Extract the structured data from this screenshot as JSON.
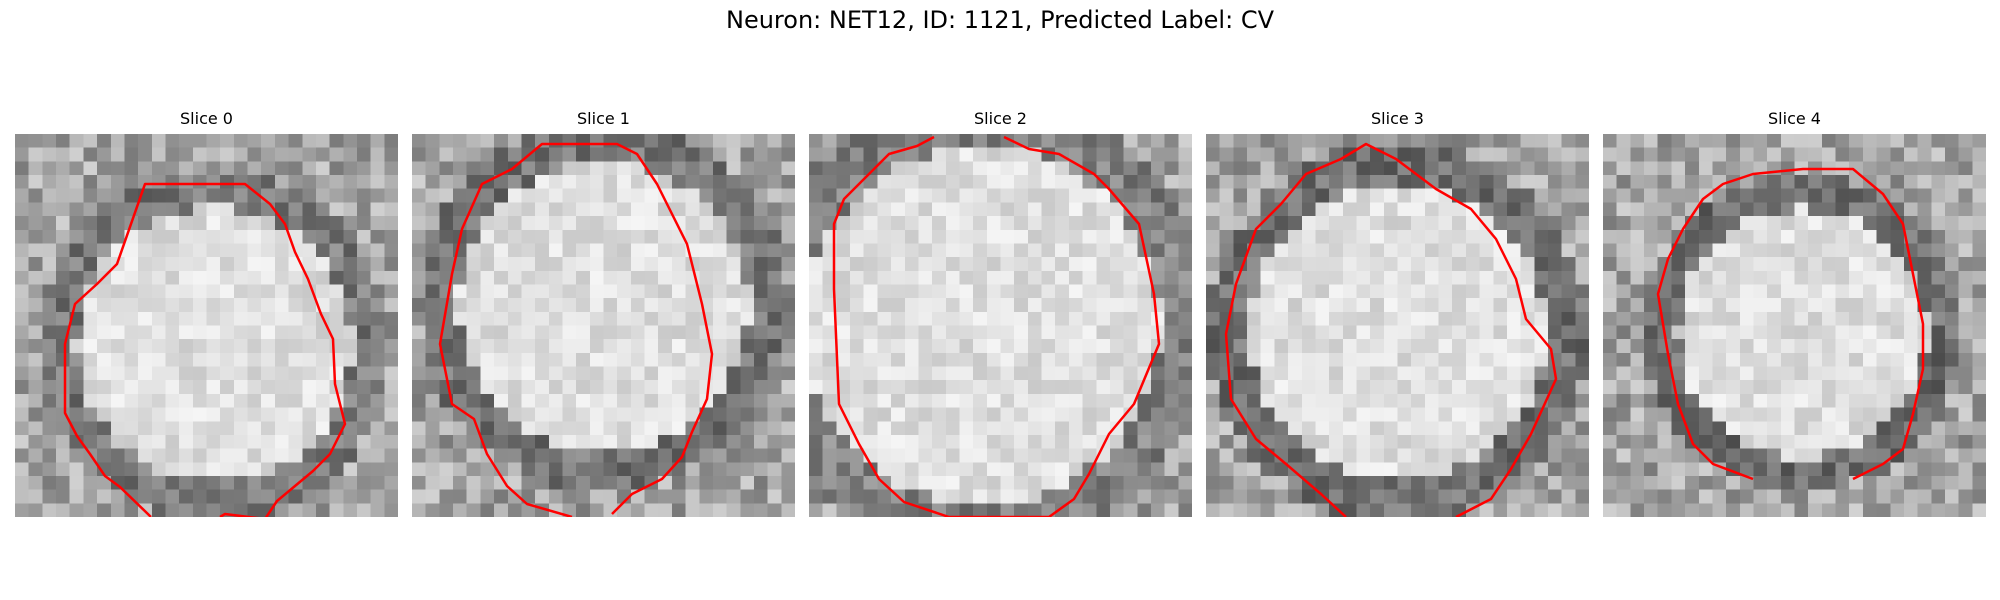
{
  "figure": {
    "title": "Neuron: NET12, ID: 1121, Predicted Label: CV"
  },
  "slices": [
    {
      "label": "Slice 0"
    },
    {
      "label": "Slice 1"
    },
    {
      "label": "Slice 2"
    },
    {
      "label": "Slice 3"
    },
    {
      "label": "Slice 4"
    }
  ],
  "colors": {
    "contour": "#ff0000",
    "background": "#ffffff"
  }
}
